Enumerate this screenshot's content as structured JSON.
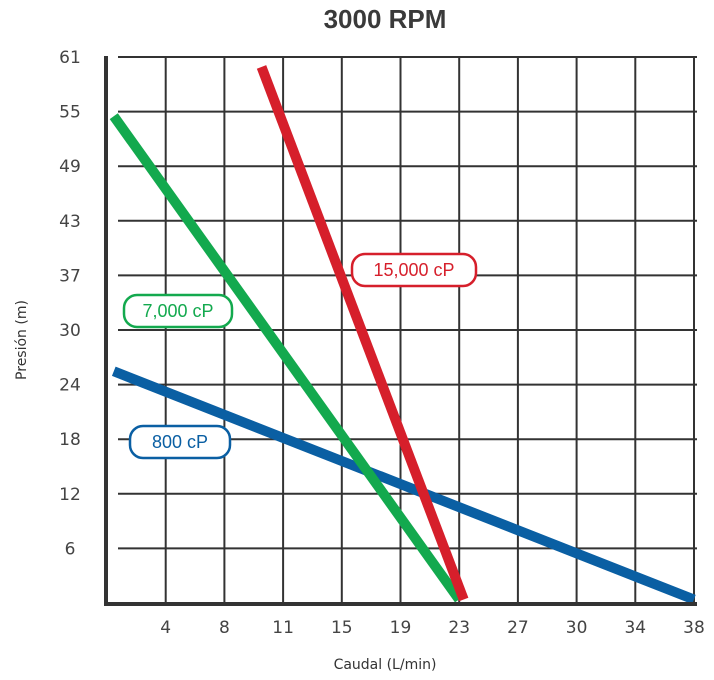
{
  "chart_data": {
    "type": "line",
    "title": "3000 RPM",
    "xlabel": "Caudal (L/min)",
    "ylabel": "Presión (m)",
    "x_ticks": [
      "4",
      "8",
      "11",
      "15",
      "19",
      "23",
      "27",
      "30",
      "34",
      "38"
    ],
    "y_ticks": [
      "6",
      "12",
      "18",
      "24",
      "30",
      "37",
      "43",
      "49",
      "55",
      "61"
    ],
    "xlim": [
      0,
      38
    ],
    "ylim": [
      0,
      61
    ],
    "grid": true,
    "series": [
      {
        "name": "800 cP",
        "color": "#0a5fa3",
        "points": [
          [
            0.5,
            26
          ],
          [
            37.8,
            0.5
          ]
        ]
      },
      {
        "name": "7,000 cP",
        "color": "#13a94e",
        "points": [
          [
            0.5,
            54.5
          ],
          [
            22.7,
            0.5
          ]
        ]
      },
      {
        "name": "15,000 cP",
        "color": "#d61f2b",
        "points": [
          [
            10,
            60
          ],
          [
            23,
            0.5
          ]
        ]
      }
    ]
  }
}
